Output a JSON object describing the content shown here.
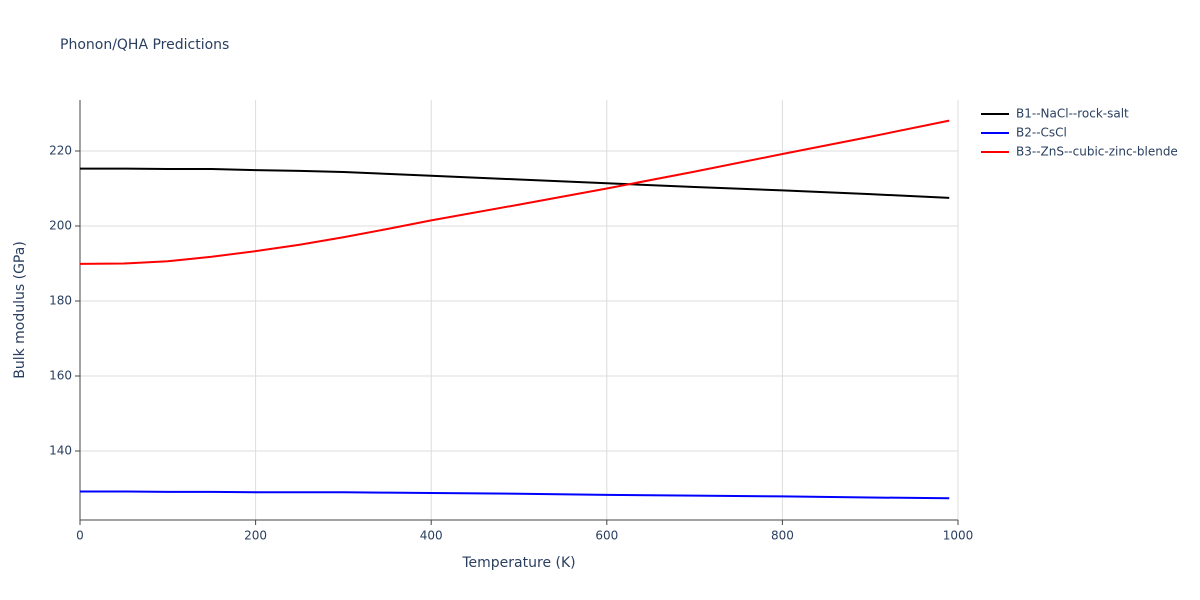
{
  "chart_data": {
    "type": "line",
    "title": "Phonon/QHA Predictions",
    "x_label": "Temperature (K)",
    "y_label": "Bulk modulus (GPa)",
    "x": [
      0,
      50,
      100,
      150,
      200,
      250,
      300,
      350,
      400,
      500,
      600,
      700,
      800,
      900,
      990
    ],
    "series": [
      {
        "name": "B1--NaCl--rock-salt",
        "color": "#000000",
        "values": [
          215.3,
          215.3,
          215.2,
          215.2,
          214.9,
          214.7,
          214.4,
          213.9,
          213.4,
          212.4,
          211.4,
          210.4,
          209.5,
          208.5,
          207.5
        ]
      },
      {
        "name": "B2--CsCl",
        "color": "#0000ff",
        "values": [
          129.2,
          129.2,
          129.1,
          129.1,
          129.0,
          129.0,
          129.0,
          128.9,
          128.8,
          128.6,
          128.3,
          128.1,
          127.9,
          127.6,
          127.4
        ]
      },
      {
        "name": "B3--ZnS--cubic-zinc-blende",
        "color": "#ff0000",
        "values": [
          189.9,
          190.0,
          190.6,
          191.8,
          193.3,
          195.0,
          197.0,
          199.2,
          201.5,
          205.7,
          210.0,
          214.5,
          219.2,
          223.8,
          228.1
        ]
      }
    ],
    "xlim": [
      0,
      1000
    ],
    "xticks": [
      0,
      200,
      400,
      600,
      800,
      1000
    ],
    "ylim": [
      121.6,
      233.6
    ],
    "yticks": [
      140,
      160,
      180,
      200,
      220
    ],
    "grid": true,
    "legend": "right"
  }
}
